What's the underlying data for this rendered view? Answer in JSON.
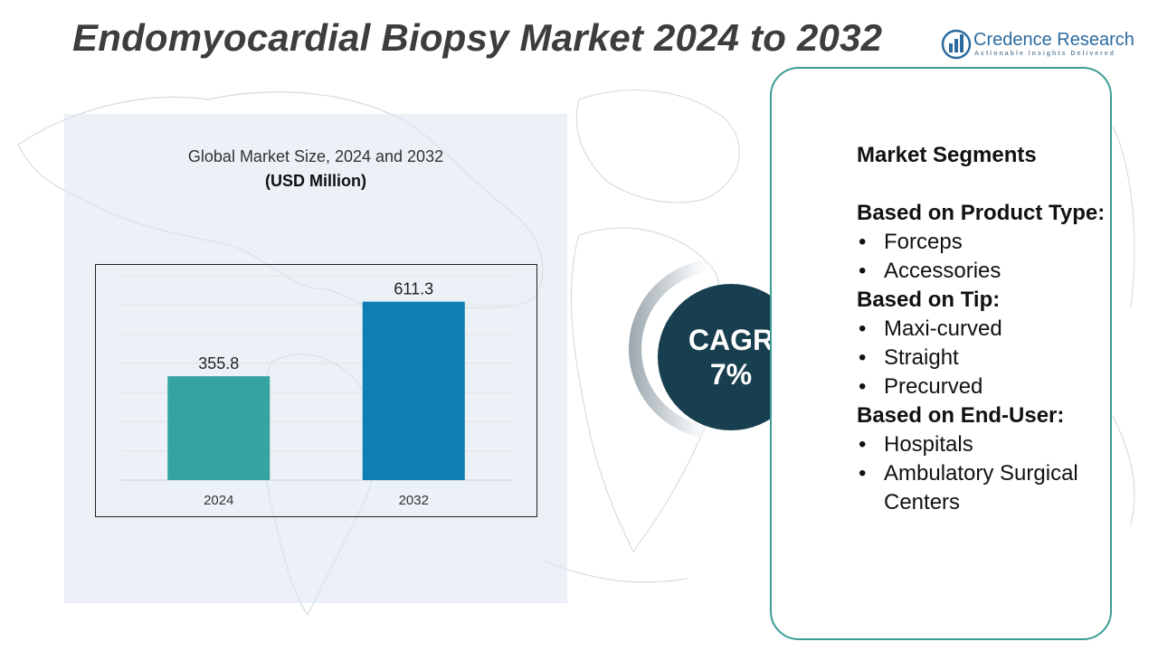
{
  "title": "Endomyocardial Biopsy Market 2024 to 2032",
  "logo": {
    "name": "Credence Research",
    "tagline": "Actionable Insights Delivered",
    "icon": "bar-chart-logo-icon"
  },
  "chart_data": {
    "type": "bar",
    "title": "Global Market Size, 2024 and 2032",
    "ylabel": "(USD Million)",
    "categories": [
      "2024",
      "2032"
    ],
    "values": [
      355.8,
      611.3
    ],
    "data_labels": [
      "355.8",
      "611.3"
    ],
    "colors": [
      "#35a3a0",
      "#0e7fb3"
    ],
    "ylim": [
      0,
      700
    ],
    "grid": true
  },
  "cagr": {
    "label": "CAGR",
    "value": "7%"
  },
  "segments": {
    "heading": "Market Segments",
    "groups": [
      {
        "title": "Based on Product Type:",
        "items": [
          "Forceps",
          "Accessories"
        ]
      },
      {
        "title": "Based on Tip:",
        "items": [
          "Maxi-curved",
          "Straight",
          "Precurved"
        ]
      },
      {
        "title": "Based on End-User:",
        "items": [
          "Hospitals",
          "Ambulatory Surgical Centers"
        ]
      }
    ]
  },
  "colors": {
    "title": "#3d3d3d",
    "accent_teal": "#3c9c95",
    "cagr_bg": "#173f4f",
    "panel_bg": "#dbe6ef"
  }
}
